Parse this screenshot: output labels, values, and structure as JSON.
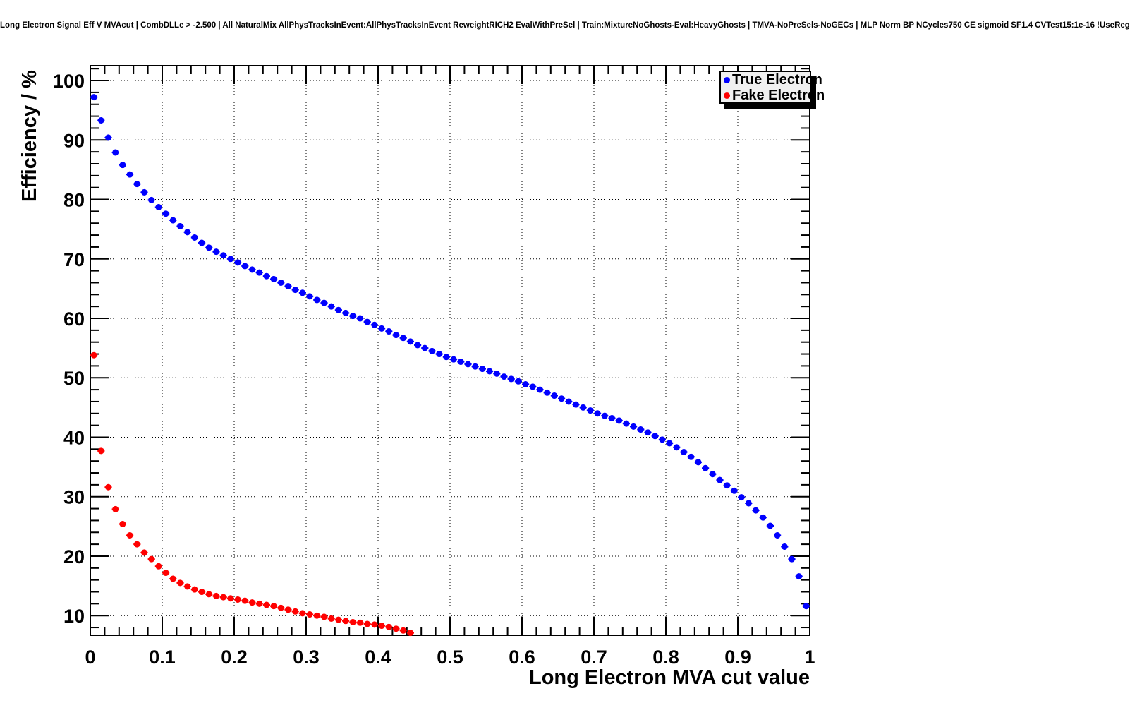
{
  "chart_data": {
    "type": "scatter",
    "title": "Long Electron Signal Eff V MVAcut | CombDLLe > -2.500 | All NaturalMix AllPhysTracksInEvent:AllPhysTracksInEvent ReweightRICH2 EvalWithPreSel | Train:MixtureNoGhosts-Eval:HeavyGhosts | TMVA-NoPreSels-NoGECs | MLP Norm BP NCycles750 CE sigmoid SF1.4 CVTest15:1e-16 !UseReg",
    "xlabel": "Long Electron MVA cut value",
    "ylabel": "Efficiency / %",
    "xlim": [
      0,
      1
    ],
    "ylim": [
      6.7,
      102.5
    ],
    "grid": true,
    "marker": "filled-circle",
    "x_error_half_width": 0.005,
    "y_error_half_width": 0.5,
    "x_ticks": {
      "values": [
        0,
        0.1,
        0.2,
        0.3,
        0.4,
        0.5,
        0.6,
        0.7,
        0.8,
        0.9,
        1
      ],
      "labels": [
        "0",
        "0.1",
        "0.2",
        "0.3",
        "0.4",
        "0.5",
        "0.6",
        "0.7",
        "0.8",
        "0.9",
        "1"
      ],
      "minor_step": 0.02
    },
    "y_ticks": {
      "values": [
        10,
        20,
        30,
        40,
        50,
        60,
        70,
        80,
        90,
        100
      ],
      "labels": [
        "10",
        "20",
        "30",
        "40",
        "50",
        "60",
        "70",
        "80",
        "90",
        "100"
      ],
      "minor_step": 2
    },
    "legend": {
      "position": "top-right",
      "entries": [
        {
          "label": "True Electron",
          "color": "#0000ff"
        },
        {
          "label": "Fake Electron",
          "color": "#ff0000"
        }
      ]
    },
    "series": [
      {
        "name": "True Electron",
        "color": "#0000ff",
        "points": [
          [
            0.005,
            97.2
          ],
          [
            0.015,
            93.3
          ],
          [
            0.025,
            90.4
          ],
          [
            0.035,
            87.9
          ],
          [
            0.045,
            85.8
          ],
          [
            0.055,
            84.2
          ],
          [
            0.065,
            82.6
          ],
          [
            0.075,
            81.2
          ],
          [
            0.085,
            79.9
          ],
          [
            0.095,
            78.7
          ],
          [
            0.105,
            77.6
          ],
          [
            0.115,
            76.5
          ],
          [
            0.125,
            75.5
          ],
          [
            0.135,
            74.5
          ],
          [
            0.145,
            73.6
          ],
          [
            0.155,
            72.7
          ],
          [
            0.165,
            71.9
          ],
          [
            0.175,
            71.2
          ],
          [
            0.185,
            70.6
          ],
          [
            0.195,
            70.0
          ],
          [
            0.205,
            69.4
          ],
          [
            0.215,
            68.8
          ],
          [
            0.225,
            68.2
          ],
          [
            0.235,
            67.7
          ],
          [
            0.245,
            67.1
          ],
          [
            0.255,
            66.6
          ],
          [
            0.265,
            66.0
          ],
          [
            0.275,
            65.4
          ],
          [
            0.285,
            64.8
          ],
          [
            0.295,
            64.3
          ],
          [
            0.305,
            63.7
          ],
          [
            0.315,
            63.1
          ],
          [
            0.325,
            62.6
          ],
          [
            0.335,
            62.0
          ],
          [
            0.345,
            61.4
          ],
          [
            0.355,
            60.9
          ],
          [
            0.365,
            60.4
          ],
          [
            0.375,
            60.0
          ],
          [
            0.385,
            59.4
          ],
          [
            0.395,
            58.9
          ],
          [
            0.405,
            58.3
          ],
          [
            0.415,
            57.8
          ],
          [
            0.425,
            57.2
          ],
          [
            0.435,
            56.7
          ],
          [
            0.445,
            56.1
          ],
          [
            0.455,
            55.5
          ],
          [
            0.465,
            55.0
          ],
          [
            0.475,
            54.5
          ],
          [
            0.485,
            54.0
          ],
          [
            0.495,
            53.5
          ],
          [
            0.505,
            53.1
          ],
          [
            0.515,
            52.7
          ],
          [
            0.525,
            52.3
          ],
          [
            0.535,
            51.9
          ],
          [
            0.545,
            51.5
          ],
          [
            0.555,
            51.1
          ],
          [
            0.565,
            50.7
          ],
          [
            0.575,
            50.2
          ],
          [
            0.585,
            49.8
          ],
          [
            0.595,
            49.4
          ],
          [
            0.605,
            48.9
          ],
          [
            0.615,
            48.5
          ],
          [
            0.625,
            48.0
          ],
          [
            0.635,
            47.5
          ],
          [
            0.645,
            47.0
          ],
          [
            0.655,
            46.5
          ],
          [
            0.665,
            46.0
          ],
          [
            0.675,
            45.5
          ],
          [
            0.685,
            45.0
          ],
          [
            0.695,
            44.5
          ],
          [
            0.705,
            44.0
          ],
          [
            0.715,
            43.6
          ],
          [
            0.725,
            43.2
          ],
          [
            0.735,
            42.8
          ],
          [
            0.745,
            42.3
          ],
          [
            0.755,
            41.8
          ],
          [
            0.765,
            41.3
          ],
          [
            0.775,
            40.8
          ],
          [
            0.785,
            40.2
          ],
          [
            0.795,
            39.6
          ],
          [
            0.805,
            39.0
          ],
          [
            0.815,
            38.3
          ],
          [
            0.825,
            37.5
          ],
          [
            0.835,
            36.7
          ],
          [
            0.845,
            35.8
          ],
          [
            0.855,
            34.8
          ],
          [
            0.865,
            33.8
          ],
          [
            0.875,
            32.8
          ],
          [
            0.885,
            31.9
          ],
          [
            0.895,
            31.0
          ],
          [
            0.905,
            29.9
          ],
          [
            0.915,
            28.9
          ],
          [
            0.925,
            27.7
          ],
          [
            0.935,
            26.5
          ],
          [
            0.945,
            25.1
          ],
          [
            0.955,
            23.5
          ],
          [
            0.965,
            21.6
          ],
          [
            0.975,
            19.5
          ],
          [
            0.985,
            16.6
          ],
          [
            0.995,
            11.6
          ]
        ]
      },
      {
        "name": "Fake Electron",
        "color": "#ff0000",
        "points": [
          [
            0.005,
            53.8
          ],
          [
            0.015,
            37.7
          ],
          [
            0.025,
            31.6
          ],
          [
            0.035,
            27.9
          ],
          [
            0.045,
            25.4
          ],
          [
            0.055,
            23.5
          ],
          [
            0.065,
            22.0
          ],
          [
            0.075,
            20.6
          ],
          [
            0.085,
            19.5
          ],
          [
            0.095,
            18.3
          ],
          [
            0.105,
            17.2
          ],
          [
            0.115,
            16.2
          ],
          [
            0.125,
            15.5
          ],
          [
            0.135,
            14.9
          ],
          [
            0.145,
            14.4
          ],
          [
            0.155,
            14.0
          ],
          [
            0.165,
            13.6
          ],
          [
            0.175,
            13.3
          ],
          [
            0.185,
            13.1
          ],
          [
            0.195,
            12.9
          ],
          [
            0.205,
            12.7
          ],
          [
            0.215,
            12.5
          ],
          [
            0.225,
            12.2
          ],
          [
            0.235,
            12.0
          ],
          [
            0.245,
            11.8
          ],
          [
            0.255,
            11.6
          ],
          [
            0.265,
            11.3
          ],
          [
            0.275,
            11.0
          ],
          [
            0.285,
            10.7
          ],
          [
            0.295,
            10.4
          ],
          [
            0.305,
            10.2
          ],
          [
            0.315,
            10.0
          ],
          [
            0.325,
            9.8
          ],
          [
            0.335,
            9.5
          ],
          [
            0.345,
            9.3
          ],
          [
            0.355,
            9.1
          ],
          [
            0.365,
            8.9
          ],
          [
            0.375,
            8.8
          ],
          [
            0.385,
            8.6
          ],
          [
            0.395,
            8.5
          ],
          [
            0.405,
            8.3
          ],
          [
            0.415,
            8.1
          ],
          [
            0.425,
            7.8
          ],
          [
            0.435,
            7.5
          ],
          [
            0.445,
            7.1
          ]
        ]
      }
    ]
  }
}
